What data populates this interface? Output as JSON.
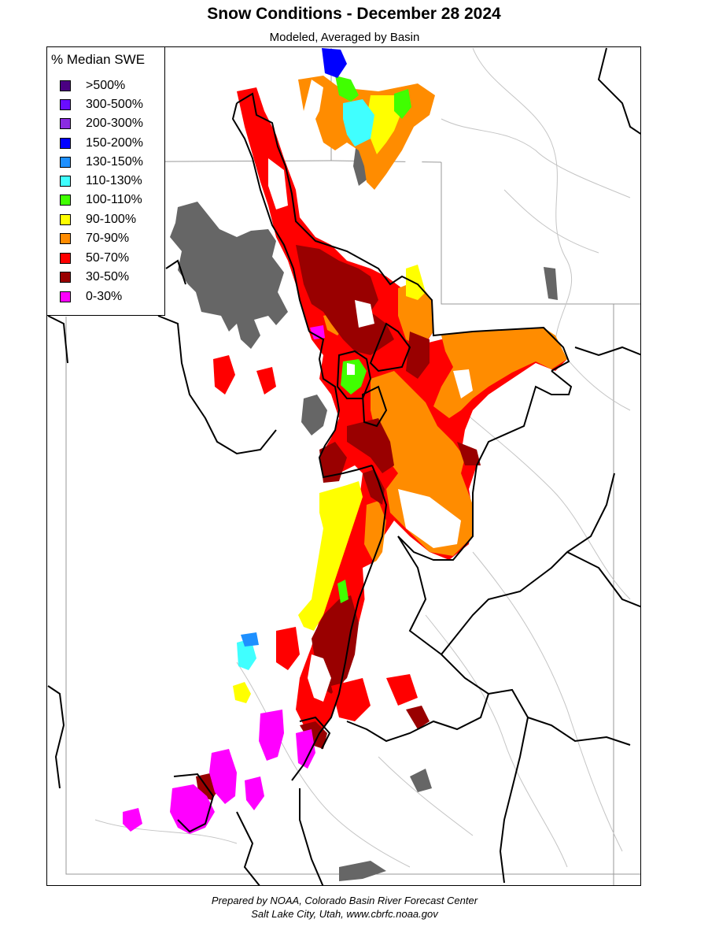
{
  "title": "Snow Conditions - December 28 2024",
  "subtitle": "Modeled, Averaged by Basin",
  "legend": {
    "title": "% Median SWE",
    "items": [
      {
        "label": ">500%",
        "color": "#4b0082"
      },
      {
        "label": "300-500%",
        "color": "#6a0dff"
      },
      {
        "label": "200-300%",
        "color": "#8a2be2"
      },
      {
        "label": "150-200%",
        "color": "#0000ff"
      },
      {
        "label": "130-150%",
        "color": "#1e90ff"
      },
      {
        "label": "110-130%",
        "color": "#40ffff"
      },
      {
        "label": "100-110%",
        "color": "#40ff00"
      },
      {
        "label": "90-100%",
        "color": "#ffff00"
      },
      {
        "label": "70-90%",
        "color": "#ff8c00"
      },
      {
        "label": "50-70%",
        "color": "#ff0000"
      },
      {
        "label": "30-50%",
        "color": "#990000"
      },
      {
        "label": "0-30%",
        "color": "#ff00ff"
      }
    ]
  },
  "colors": {
    "no_data": "#666666",
    "basin_border": "#000000",
    "state_border": "#999999",
    "river": "#bbbbbb"
  },
  "credit": {
    "line1": "Prepared by NOAA, Colorado Basin River Forecast Center",
    "line2": "Salt Lake City, Utah, www.cbrfc.noaa.gov"
  }
}
